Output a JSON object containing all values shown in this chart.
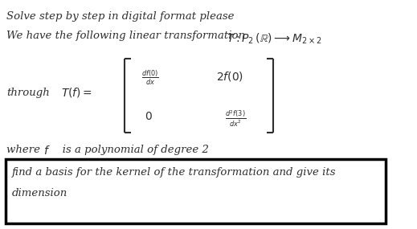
{
  "bg_color": "#ffffff",
  "line1": "Solve step by step in digital format please",
  "line2_pre": "We have the following linear transformation  ",
  "line2_math": "$T : P_2\\,(\\mathbb{R}) \\longrightarrow M_{2\\times2}$",
  "through_label": "through",
  "Tf_label": "$T(f) =$",
  "matrix_top_left": "$\\frac{df(0)}{dx}$",
  "matrix_top_right": "$2f(0)$",
  "matrix_bot_left": "$0$",
  "matrix_bot_right": "$\\frac{d^2f(3)}{dx^2}$",
  "line3_pre": "where ",
  "line3_f": "$f$",
  "line3_post": "   is a polynomial of degree 2",
  "boxed_line1": "find a basis for the kernel of the transformation and give its",
  "boxed_line2": "dimension",
  "font_color": "#2e2e2e",
  "fig_w": 5.19,
  "fig_h": 2.85,
  "dpi": 100
}
